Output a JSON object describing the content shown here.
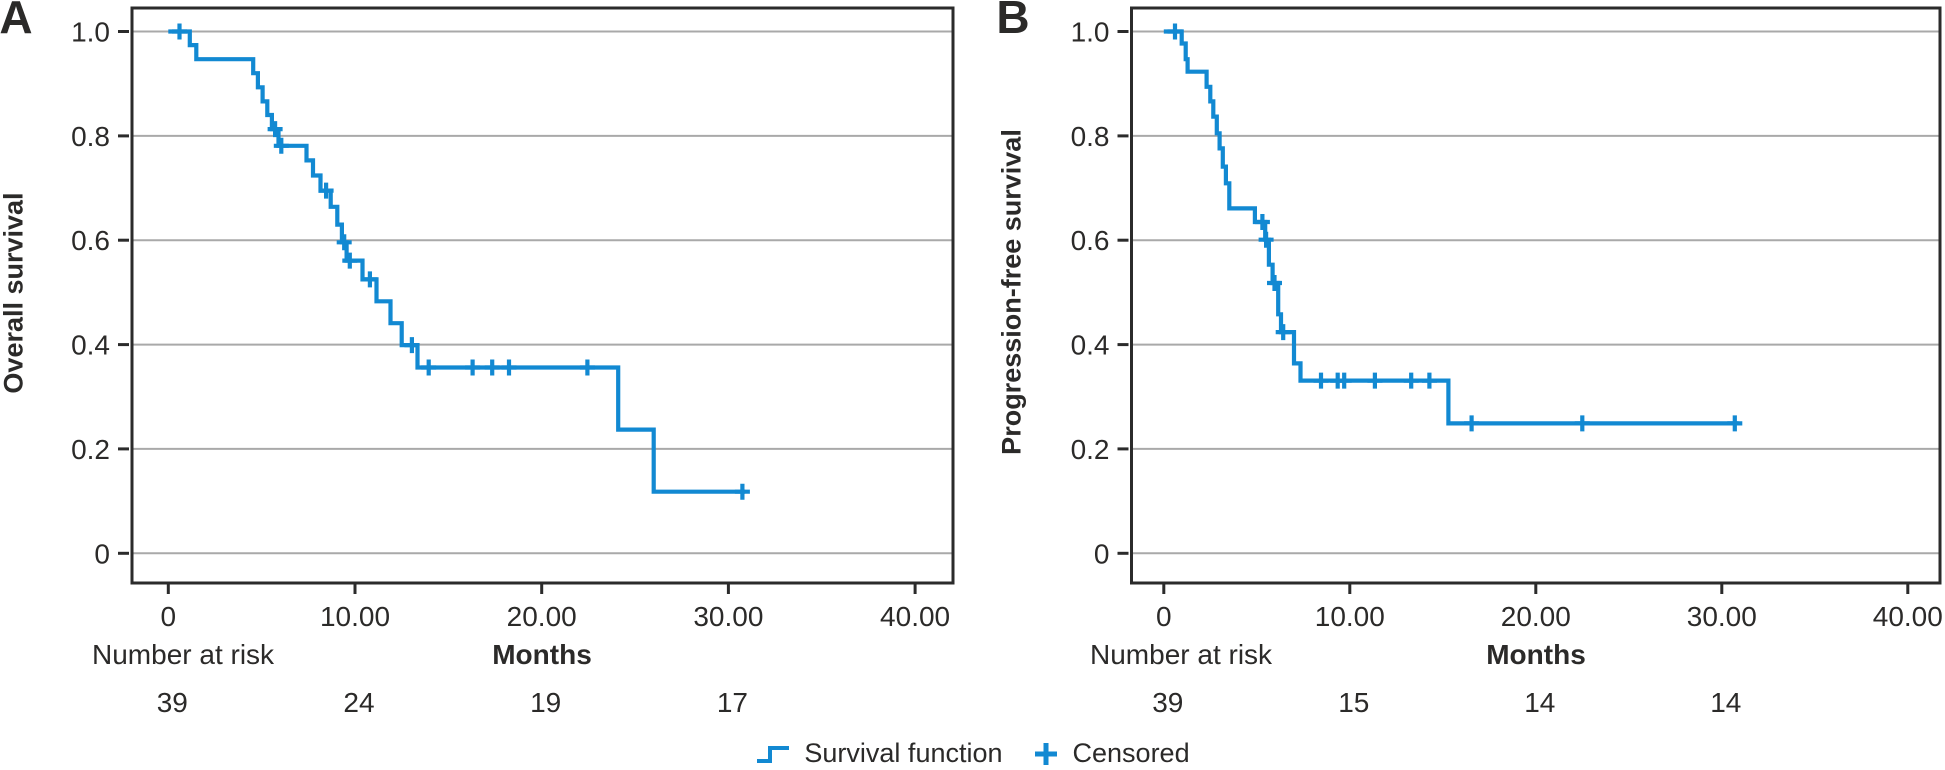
{
  "figure": {
    "legend": {
      "survival_label": "Survival function",
      "censored_label": "Censored"
    },
    "colors": {
      "curve": "#1289D2",
      "grid": "#A9A9A9",
      "frame": "#2B2B2B",
      "text": "#2B2A29"
    }
  },
  "chart_data": [
    {
      "type": "line",
      "subtype": "kaplan-meier-step",
      "panel_letter": "A",
      "ylabel": "Overall survival",
      "xlabel": "Months",
      "x_ticks": [
        "0",
        "10.00",
        "20.00",
        "30.00",
        "40.00"
      ],
      "x_tick_values": [
        0,
        10,
        20,
        30,
        40
      ],
      "y_ticks": [
        "1.0",
        "0.8",
        "0.6",
        "0.4",
        "0.2",
        "0"
      ],
      "y_tick_values": [
        1.0,
        0.8,
        0.6,
        0.4,
        0.2,
        0
      ],
      "xlim": [
        -1.9,
        42.0
      ],
      "ylim": [
        -0.06,
        1.05
      ],
      "grid": true,
      "number_at_risk_label": "Number at risk",
      "number_at_risk": {
        "times": [
          0,
          10,
          20,
          30
        ],
        "counts": [
          "39",
          "24",
          "19",
          "17"
        ]
      },
      "steps": [
        [
          0,
          1.0
        ],
        [
          1.15,
          0.974
        ],
        [
          1.5,
          0.947
        ],
        [
          4.55,
          0.92
        ],
        [
          4.8,
          0.893
        ],
        [
          5.05,
          0.866
        ],
        [
          5.3,
          0.84
        ],
        [
          5.55,
          0.813
        ],
        [
          5.9,
          0.781
        ],
        [
          7.4,
          0.753
        ],
        [
          7.75,
          0.724
        ],
        [
          8.15,
          0.695
        ],
        [
          8.7,
          0.664
        ],
        [
          9.05,
          0.63
        ],
        [
          9.3,
          0.596
        ],
        [
          9.55,
          0.561
        ],
        [
          10.4,
          0.525
        ],
        [
          11.15,
          0.483
        ],
        [
          11.9,
          0.441
        ],
        [
          12.5,
          0.399
        ],
        [
          13.35,
          0.356
        ],
        [
          24.1,
          0.237
        ],
        [
          26.0,
          0.118
        ]
      ],
      "censors": [
        [
          0.6,
          1.0
        ],
        [
          5.72,
          0.813
        ],
        [
          6.05,
          0.781
        ],
        [
          8.45,
          0.695
        ],
        [
          9.42,
          0.596
        ],
        [
          9.72,
          0.561
        ],
        [
          10.8,
          0.525
        ],
        [
          13.05,
          0.399
        ],
        [
          13.95,
          0.356
        ],
        [
          16.3,
          0.356
        ],
        [
          17.35,
          0.356
        ],
        [
          18.25,
          0.356
        ],
        [
          22.45,
          0.356
        ],
        [
          30.75,
          0.118
        ]
      ],
      "end_time": 30.9
    },
    {
      "type": "line",
      "subtype": "kaplan-meier-step",
      "panel_letter": "B",
      "ylabel": "Progression-free survival",
      "xlabel": "Months",
      "x_ticks": [
        "0",
        "10.00",
        "20.00",
        "30.00",
        "40.00"
      ],
      "x_tick_values": [
        0,
        10,
        20,
        30,
        40
      ],
      "y_ticks": [
        "1.0",
        "0.8",
        "0.6",
        "0.4",
        "0.2",
        "0"
      ],
      "y_tick_values": [
        1.0,
        0.8,
        0.6,
        0.4,
        0.2,
        0
      ],
      "xlim": [
        -1.7,
        41.7
      ],
      "ylim": [
        -0.06,
        1.05
      ],
      "grid": true,
      "number_at_risk_label": "Number at risk",
      "number_at_risk": {
        "times": [
          0,
          10,
          20,
          30
        ],
        "counts": [
          "39",
          "15",
          "14",
          "14"
        ]
      },
      "steps": [
        [
          0,
          1.0
        ],
        [
          0.96,
          0.977
        ],
        [
          1.18,
          0.947
        ],
        [
          1.28,
          0.923
        ],
        [
          2.3,
          0.894
        ],
        [
          2.5,
          0.866
        ],
        [
          2.66,
          0.837
        ],
        [
          2.85,
          0.805
        ],
        [
          3.0,
          0.776
        ],
        [
          3.17,
          0.741
        ],
        [
          3.34,
          0.709
        ],
        [
          3.52,
          0.661
        ],
        [
          4.9,
          0.635
        ],
        [
          5.45,
          0.601
        ],
        [
          5.65,
          0.553
        ],
        [
          5.85,
          0.518
        ],
        [
          6.15,
          0.458
        ],
        [
          6.3,
          0.424
        ],
        [
          7.0,
          0.364
        ],
        [
          7.35,
          0.331
        ],
        [
          15.3,
          0.249
        ]
      ],
      "censors": [
        [
          0.6,
          1.0
        ],
        [
          5.3,
          0.635
        ],
        [
          5.5,
          0.601
        ],
        [
          5.95,
          0.518
        ],
        [
          6.42,
          0.424
        ],
        [
          8.45,
          0.331
        ],
        [
          9.35,
          0.331
        ],
        [
          9.7,
          0.331
        ],
        [
          11.35,
          0.331
        ],
        [
          13.3,
          0.331
        ],
        [
          14.28,
          0.331
        ],
        [
          16.55,
          0.249
        ],
        [
          22.5,
          0.249
        ],
        [
          30.7,
          0.249
        ]
      ],
      "end_time": 30.9
    }
  ]
}
